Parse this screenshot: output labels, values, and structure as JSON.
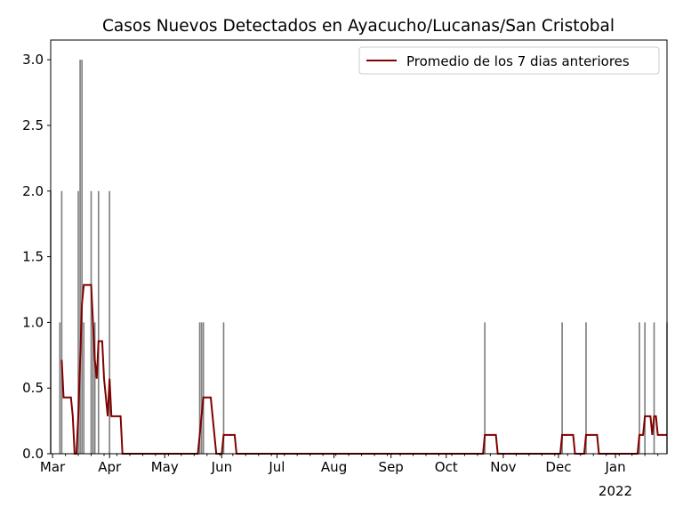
{
  "chart_data": {
    "type": "bar",
    "title": "Casos Nuevos Detectados en Ayacucho/Lucanas/San Cristobal",
    "xlabel": "",
    "ylabel": "",
    "ylim": [
      0,
      3.15
    ],
    "xlim": [
      0,
      335
    ],
    "yticks": [
      0,
      0.5,
      1.0,
      1.5,
      2.0,
      2.5,
      3.0
    ],
    "ytick_labels": [
      "0.0",
      "0.5",
      "1.0",
      "1.5",
      "2.0",
      "2.5",
      "3.0"
    ],
    "xticks": [
      {
        "day": 1,
        "label": "Mar"
      },
      {
        "day": 32,
        "label": "Apr"
      },
      {
        "day": 62,
        "label": "May"
      },
      {
        "day": 93,
        "label": "Jun"
      },
      {
        "day": 123,
        "label": "Jul"
      },
      {
        "day": 154,
        "label": "Aug"
      },
      {
        "day": 185,
        "label": "Sep"
      },
      {
        "day": 215,
        "label": "Oct"
      },
      {
        "day": 246,
        "label": "Nov"
      },
      {
        "day": 276,
        "label": "Dec"
      },
      {
        "day": 307,
        "label": "Jan"
      }
    ],
    "year_label": "2022",
    "daily_cases": [
      {
        "day": 0,
        "v": 2
      },
      {
        "day": 5,
        "v": 1
      },
      {
        "day": 6,
        "v": 2
      },
      {
        "day": 15,
        "v": 2
      },
      {
        "day": 16,
        "v": 3
      },
      {
        "day": 17,
        "v": 3
      },
      {
        "day": 18,
        "v": 1
      },
      {
        "day": 22,
        "v": 2
      },
      {
        "day": 23,
        "v": 1
      },
      {
        "day": 24,
        "v": 1
      },
      {
        "day": 26,
        "v": 2
      },
      {
        "day": 32,
        "v": 2
      },
      {
        "day": 81,
        "v": 1
      },
      {
        "day": 82,
        "v": 1
      },
      {
        "day": 83,
        "v": 1
      },
      {
        "day": 94,
        "v": 1
      },
      {
        "day": 236,
        "v": 1
      },
      {
        "day": 278,
        "v": 1
      },
      {
        "day": 291,
        "v": 1
      },
      {
        "day": 320,
        "v": 1
      },
      {
        "day": 323,
        "v": 1
      },
      {
        "day": 328,
        "v": 1
      },
      {
        "day": 335,
        "v": 1
      }
    ],
    "series": [
      {
        "name": "Promedio de los 7 dias anteriores",
        "color": "#800000",
        "window": 7
      }
    ],
    "bar_color": "#808080",
    "legend_position": "top-right"
  }
}
